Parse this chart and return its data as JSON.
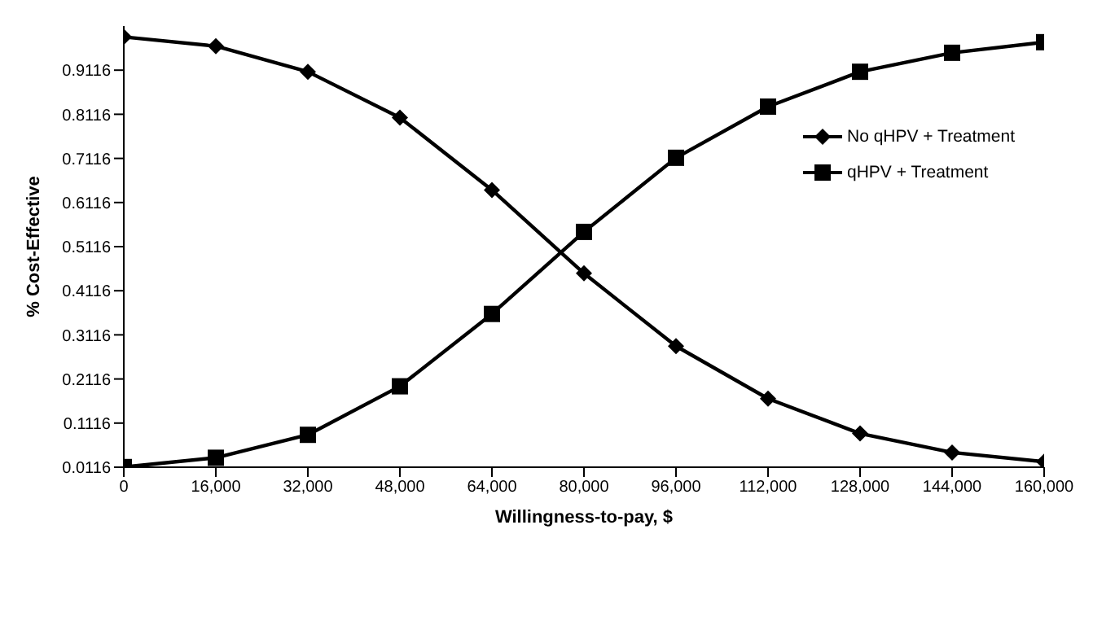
{
  "chart_data": {
    "type": "line",
    "xlabel": "Willingness-to-pay, $",
    "ylabel": "% Cost-Effective",
    "x": [
      0,
      16000,
      32000,
      48000,
      64000,
      80000,
      96000,
      112000,
      128000,
      144000,
      160000
    ],
    "series": [
      {
        "name": "No qHPV + Treatment",
        "color": "#000000",
        "marker": "diamond",
        "values": [
          0.987,
          0.966,
          0.908,
          0.804,
          0.64,
          0.451,
          0.286,
          0.167,
          0.088,
          0.045,
          0.024
        ]
      },
      {
        "name": "qHPV + Treatment",
        "color": "#000000",
        "marker": "square",
        "values": [
          0.012,
          0.033,
          0.085,
          0.195,
          0.359,
          0.545,
          0.713,
          0.829,
          0.908,
          0.951,
          0.975
        ]
      }
    ],
    "xlim": [
      0,
      160000
    ],
    "xticks": [
      {
        "value": 0,
        "label": "0"
      },
      {
        "value": 16000,
        "label": "16,000"
      },
      {
        "value": 32000,
        "label": "32,000"
      },
      {
        "value": 48000,
        "label": "48,000"
      },
      {
        "value": 64000,
        "label": "64,000"
      },
      {
        "value": 80000,
        "label": "80,000"
      },
      {
        "value": 96000,
        "label": "96,000"
      },
      {
        "value": 112000,
        "label": "112,000"
      },
      {
        "value": 128000,
        "label": "128,000"
      },
      {
        "value": 144000,
        "label": "144,000"
      },
      {
        "value": 160000,
        "label": "160,000"
      }
    ],
    "ylim": [
      0.0116,
      1.0116
    ],
    "yticks": [
      0.0116,
      0.1116,
      0.2116,
      0.3116,
      0.4116,
      0.5116,
      0.6116,
      0.7116,
      0.8116,
      0.9116
    ],
    "grid": false,
    "legend": "right",
    "line_style": "solid"
  }
}
